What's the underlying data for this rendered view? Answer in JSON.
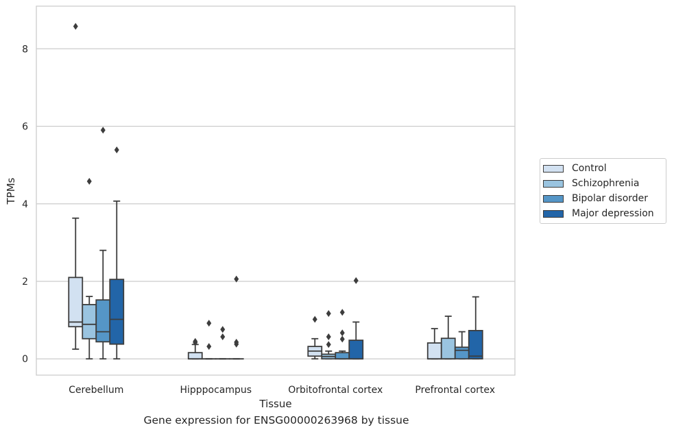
{
  "caption": "Gene expression for ENSG00000263968 by tissue",
  "chart_data": {
    "type": "boxplot",
    "xlabel": "Tissue",
    "ylabel": "TPMs",
    "ylim": [
      -0.42,
      9.1
    ],
    "yticks": [
      0,
      2,
      4,
      6,
      8
    ],
    "grid": "horizontal",
    "legend_position": "right",
    "categories": [
      "Cerebellum",
      "Hipppocampus",
      "Orbitofrontal cortex",
      "Prefrontal cortex"
    ],
    "series": [
      {
        "name": "Control",
        "color": "#d2e1f1",
        "boxes": [
          {
            "whislo": 0.25,
            "q1": 0.83,
            "med": 0.95,
            "q3": 2.1,
            "whishi": 3.63,
            "fliers": [
              8.58
            ]
          },
          {
            "whislo": 0.0,
            "q1": 0.0,
            "med": 0.0,
            "q3": 0.16,
            "whishi": 0.37,
            "fliers": [
              0.42,
              0.45
            ]
          },
          {
            "whislo": 0.0,
            "q1": 0.07,
            "med": 0.2,
            "q3": 0.32,
            "whishi": 0.52,
            "fliers": [
              1.02
            ]
          },
          {
            "whislo": 0.0,
            "q1": 0.0,
            "med": 0.0,
            "q3": 0.41,
            "whishi": 0.78,
            "fliers": []
          }
        ]
      },
      {
        "name": "Schizophrenia",
        "color": "#9ac4e0",
        "boxes": [
          {
            "whislo": 0.0,
            "q1": 0.52,
            "med": 0.89,
            "q3": 1.4,
            "whishi": 1.61,
            "fliers": [
              4.58
            ]
          },
          {
            "whislo": 0.0,
            "q1": 0.0,
            "med": 0.0,
            "q3": 0.0,
            "whishi": 0.0,
            "fliers": [
              0.92,
              0.32
            ]
          },
          {
            "whislo": 0.0,
            "q1": 0.0,
            "med": 0.06,
            "q3": 0.12,
            "whishi": 0.2,
            "fliers": [
              1.17,
              0.57,
              0.37
            ]
          },
          {
            "whislo": 0.0,
            "q1": 0.0,
            "med": 0.0,
            "q3": 0.53,
            "whishi": 1.1,
            "fliers": []
          }
        ]
      },
      {
        "name": "Bipolar disorder",
        "color": "#5596c7",
        "boxes": [
          {
            "whislo": 0.0,
            "q1": 0.44,
            "med": 0.7,
            "q3": 1.52,
            "whishi": 2.8,
            "fliers": [
              5.9
            ]
          },
          {
            "whislo": 0.0,
            "q1": 0.0,
            "med": 0.0,
            "q3": 0.0,
            "whishi": 0.0,
            "fliers": [
              0.76,
              0.57
            ]
          },
          {
            "whislo": 0.0,
            "q1": 0.0,
            "med": 0.0,
            "q3": 0.16,
            "whishi": 0.2,
            "fliers": [
              1.2,
              0.67,
              0.51
            ]
          },
          {
            "whislo": 0.0,
            "q1": 0.0,
            "med": 0.22,
            "q3": 0.3,
            "whishi": 0.7,
            "fliers": []
          }
        ]
      },
      {
        "name": "Major depression",
        "color": "#2265a8",
        "boxes": [
          {
            "whislo": 0.0,
            "q1": 0.38,
            "med": 1.02,
            "q3": 2.05,
            "whishi": 4.07,
            "fliers": [
              5.39
            ]
          },
          {
            "whislo": 0.0,
            "q1": 0.0,
            "med": 0.0,
            "q3": 0.0,
            "whishi": 0.0,
            "fliers": [
              2.06,
              0.43,
              0.38
            ]
          },
          {
            "whislo": 0.0,
            "q1": 0.0,
            "med": 0.0,
            "q3": 0.48,
            "whishi": 0.95,
            "fliers": [
              2.02
            ]
          },
          {
            "whislo": 0.0,
            "q1": 0.0,
            "med": 0.07,
            "q3": 0.73,
            "whishi": 1.6,
            "fliers": []
          }
        ]
      }
    ]
  }
}
